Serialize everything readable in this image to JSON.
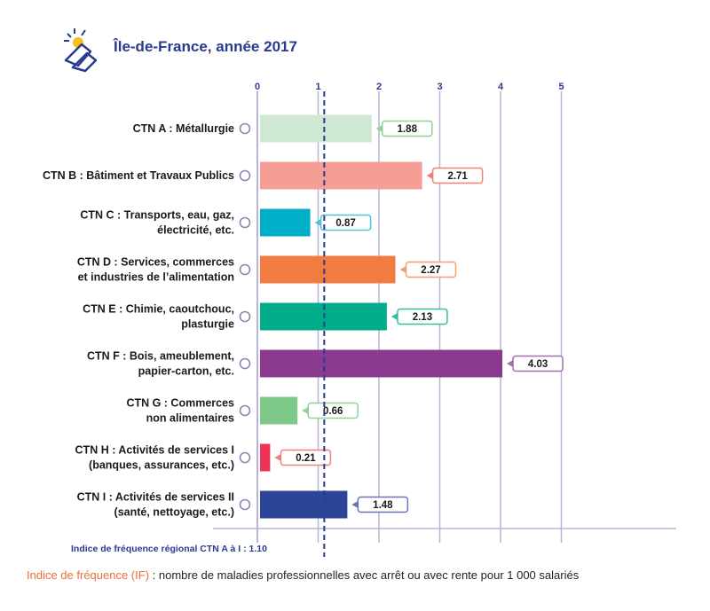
{
  "title": "Île-de-France, année 2017",
  "icon": "gloves-hazard-icon",
  "chart_data": {
    "type": "bar",
    "orientation": "horizontal",
    "xlim": [
      0,
      5
    ],
    "ticks": [
      "0",
      "1",
      "2",
      "3",
      "4",
      "5"
    ],
    "grid": true,
    "categories": [
      [
        "CTN A : Métallurgie"
      ],
      [
        "CTN B : Bâtiment et Travaux Publics"
      ],
      [
        "CTN C : Transports, eau, gaz,",
        "électricité, etc."
      ],
      [
        "CTN D : Services, commerces",
        "et industries de l’alimentation"
      ],
      [
        "CTN E : Chimie, caoutchouc,",
        "plasturgie"
      ],
      [
        "CTN F : Bois, ameublement,",
        "papier-carton, etc."
      ],
      [
        "CTN G : Commerces",
        "non alimentaires"
      ],
      [
        "CTN H : Activités de services I",
        "(banques, assurances, etc.)"
      ],
      [
        "CTN I : Activités de services II",
        "(santé, nettoyage, etc.)"
      ]
    ],
    "values": [
      1.88,
      2.71,
      0.87,
      2.27,
      2.13,
      4.03,
      0.66,
      0.21,
      1.48
    ],
    "value_labels": [
      "1.88",
      "2.71",
      "0.87",
      "2.27",
      "2.13",
      "4.03",
      "0.66",
      "0.21",
      "1.48"
    ],
    "colors": [
      "#cfe8d3",
      "#f49e95",
      "#00afc7",
      "#f27b41",
      "#00ad8a",
      "#8a3a8e",
      "#7ec98a",
      "#ee3356",
      "#2a4498"
    ],
    "label_border_colors": [
      "#8fd19a",
      "#f0806f",
      "#4dc4d4",
      "#f5a070",
      "#33bf9f",
      "#a070a8",
      "#8fd19a",
      "#f0807f",
      "#6a74b8"
    ],
    "reference": {
      "value": 1.1,
      "label": "Indice de fréquence régional CTN A à I : 1.10",
      "color": "#2a3b8f"
    },
    "axis_color": "#b9b3d6"
  },
  "footnote": {
    "highlight": "Indice de fréquence (IF)",
    "text": " : nombre de maladies professionnelles avec arrêt ou avec rente pour 1 000 salariés"
  }
}
